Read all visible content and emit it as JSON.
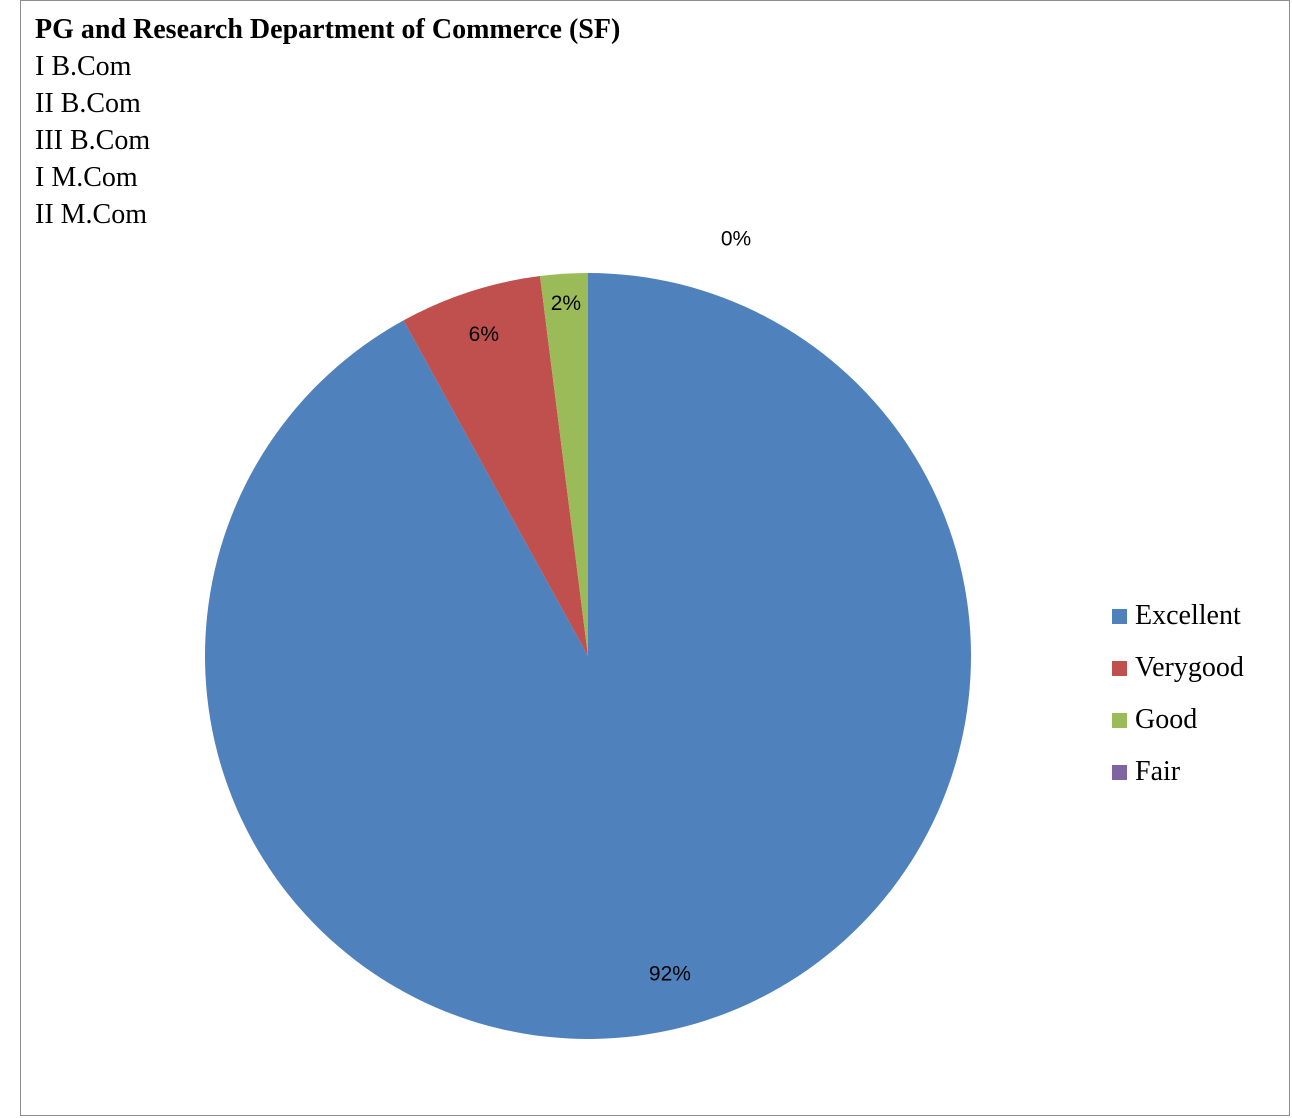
{
  "header": {
    "title": "PG and Research Department of Commerce (SF)",
    "classes": [
      "I B.Com",
      "II B.Com",
      "III B.Com",
      "I M.Com",
      "II M.Com"
    ]
  },
  "chart_data": {
    "type": "pie",
    "categories": [
      "Excellent",
      "Verygood",
      "Good",
      "Fair"
    ],
    "values": [
      92,
      6,
      2,
      0
    ],
    "data_labels": [
      "92%",
      "6%",
      "2%",
      "0%"
    ],
    "colors": [
      "#4F81BD",
      "#C0504D",
      "#9BBB59",
      "#8064A2"
    ],
    "legend_position": "right",
    "start_angle": "top, clockwise"
  }
}
